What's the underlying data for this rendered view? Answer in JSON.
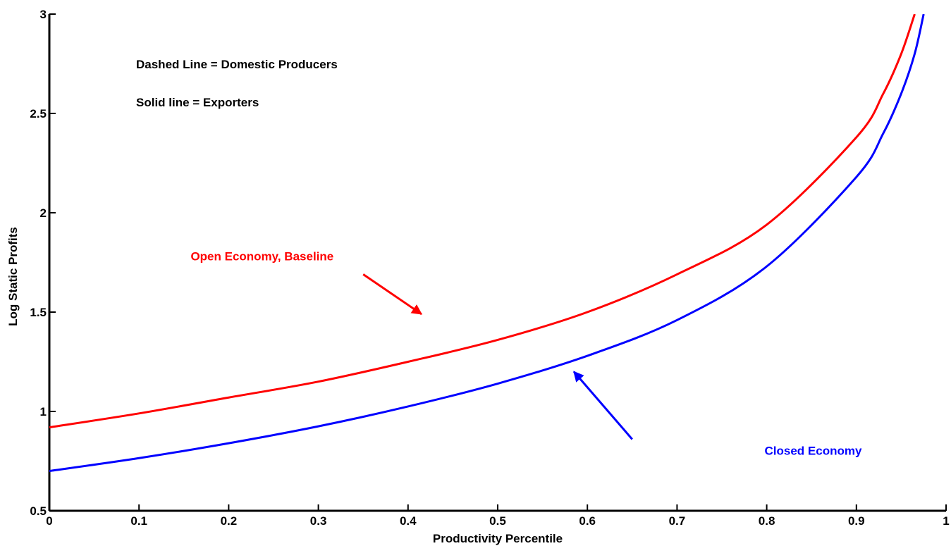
{
  "chart_data": {
    "type": "line",
    "title": "",
    "xlabel": "Productivity Percentile",
    "ylabel": "Log Static Profits",
    "xlim": [
      0,
      1
    ],
    "ylim": [
      0.5,
      3
    ],
    "grid": false,
    "xticks": [
      "0",
      "0.1",
      "0.2",
      "0.3",
      "0.4",
      "0.5",
      "0.6",
      "0.7",
      "0.8",
      "0.9",
      "1"
    ],
    "yticks": [
      "0.5",
      "1",
      "1.5",
      "2",
      "2.5",
      "3"
    ],
    "x": [
      0,
      0.1,
      0.2,
      0.3,
      0.4,
      0.5,
      0.6,
      0.7,
      0.8,
      0.9,
      0.93,
      0.95,
      0.965,
      0.975
    ],
    "series": [
      {
        "color": "#ff0000",
        "values": [
          0.92,
          0.99,
          1.07,
          1.15,
          1.25,
          1.36,
          1.5,
          1.69,
          1.94,
          2.38,
          2.6,
          2.8,
          3.0,
          null
        ]
      },
      {
        "color": "#0000ff",
        "values": [
          0.7,
          0.765,
          0.84,
          0.925,
          1.025,
          1.14,
          1.28,
          1.46,
          1.73,
          2.18,
          2.4,
          2.6,
          2.8,
          3.0
        ]
      }
    ],
    "notes": [
      "Dashed Line = Domestic Producers",
      "Solid line = Exporters"
    ],
    "annotations": [
      {
        "text": "Open Economy, Baseline",
        "color": "#ff0000",
        "label_at": [
          0.02,
          1.74
        ],
        "arrow_from": [
          0.35,
          1.69
        ],
        "arrow_to": [
          0.415,
          1.49
        ]
      },
      {
        "text": "Closed Economy",
        "color": "#0000ff",
        "label_at": [
          0.66,
          0.76
        ],
        "arrow_from": [
          0.65,
          0.86
        ],
        "arrow_to": [
          0.585,
          1.2
        ]
      }
    ]
  }
}
